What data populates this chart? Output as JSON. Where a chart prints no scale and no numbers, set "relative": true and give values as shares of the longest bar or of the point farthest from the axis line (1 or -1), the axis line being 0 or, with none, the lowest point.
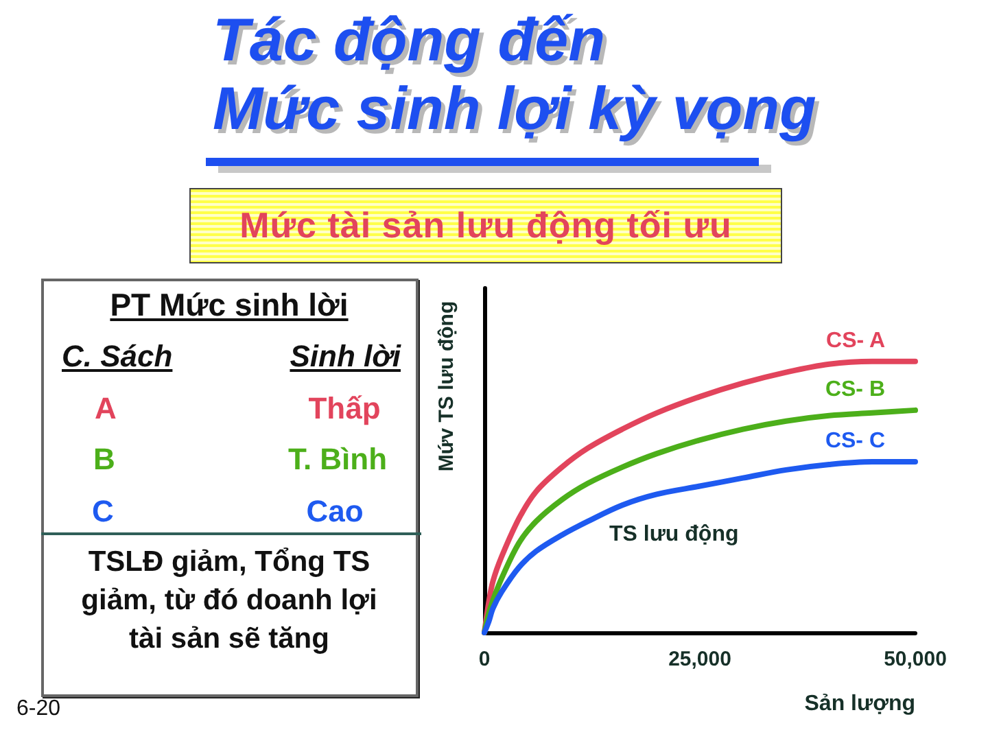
{
  "chart_data": {
    "type": "line",
    "title": "Tác động đến\nMức sinh lợi kỳ vọng",
    "subtitle": "Mức tài sản lưu động tối ưu",
    "xlabel": "Sản lượng",
    "ylabel": "Mứv TS lưu động",
    "relative": true,
    "xlim": [
      0,
      50000
    ],
    "xticks": [
      0,
      {
        "value": 25000,
        "label": "25,000"
      },
      {
        "value": 50000,
        "label": "50,000"
      }
    ],
    "tick_labels": "x",
    "grid": false,
    "legend": false,
    "marker": "none",
    "line_style": "solid",
    "x": [
      0,
      500,
      1000,
      2000,
      4000,
      6000,
      9000,
      12000,
      16000,
      20000,
      25000,
      30000,
      35000,
      40000,
      45000,
      50000
    ],
    "series": [
      {
        "name": "CS- A",
        "color": "#e2445c",
        "values": [
          0,
          0.11,
          0.19,
          0.28,
          0.42,
          0.52,
          0.61,
          0.68,
          0.75,
          0.81,
          0.87,
          0.92,
          0.96,
          0.99,
          1,
          1
        ]
      },
      {
        "name": "CS- B",
        "color": "#4caf1a",
        "values": [
          0,
          0.07,
          0.12,
          0.2,
          0.33,
          0.41,
          0.49,
          0.55,
          0.61,
          0.66,
          0.71,
          0.75,
          0.78,
          0.8,
          0.81,
          0.82
        ]
      },
      {
        "name": "CS- C",
        "color": "#1e5af0",
        "values": [
          0,
          0.04,
          0.09,
          0.15,
          0.24,
          0.3,
          0.36,
          0.41,
          0.47,
          0.51,
          0.54,
          0.57,
          0.6,
          0.62,
          0.63,
          0.63
        ]
      }
    ],
    "annotations": [
      "PT Mức sinh lời",
      "C. Sách",
      "Sinh lời",
      "A",
      "Thấp",
      "B",
      "T. Bình",
      "C",
      "Cao",
      "TSLĐ giảm, Tổng TS giảm, từ đó doanh lợi tài sản sẽ tăng",
      "TS lưu động",
      "6-20"
    ]
  }
}
